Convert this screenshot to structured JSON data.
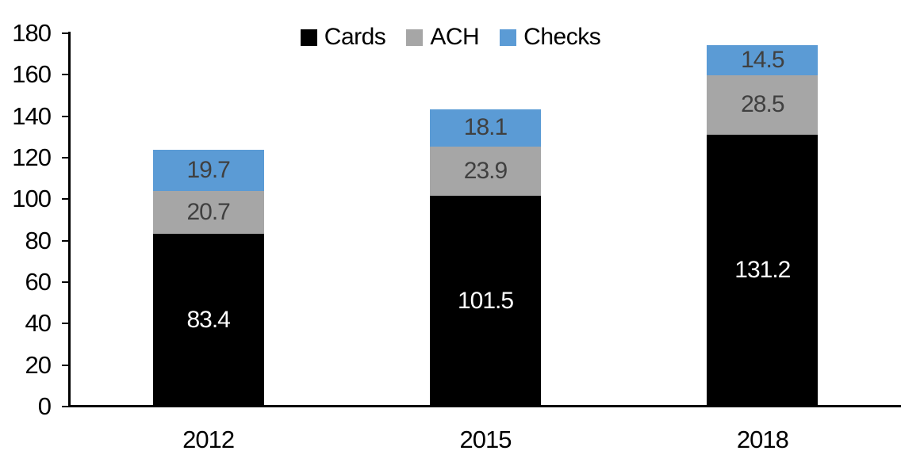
{
  "chart_data": {
    "type": "bar",
    "stacked": true,
    "title": "",
    "xlabel": "",
    "ylabel": "",
    "categories": [
      "2012",
      "2015",
      "2018"
    ],
    "series": [
      {
        "name": "Cards",
        "values": [
          83.4,
          101.5,
          131.2
        ],
        "color": "#000000",
        "label_color": "#ffffff"
      },
      {
        "name": "ACH",
        "values": [
          20.7,
          23.9,
          28.5
        ],
        "color": "#a6a6a6",
        "label_color": "#404040"
      },
      {
        "name": "Checks",
        "values": [
          19.7,
          18.1,
          14.5
        ],
        "color": "#5b9bd5",
        "label_color": "#404040"
      }
    ],
    "totals": [
      123.8,
      143.5,
      174.2
    ],
    "ylim": [
      0,
      180
    ],
    "ytick_step": 20,
    "y_tick_labels": [
      "0",
      "20",
      "40",
      "60",
      "80",
      "100",
      "120",
      "140",
      "160",
      "180"
    ],
    "grid": false,
    "data_labels": true,
    "legend_position": "top-center",
    "colors": {
      "axis": "#000000",
      "background": "#ffffff",
      "cards": "#000000",
      "ach": "#a6a6a6",
      "checks": "#5b9bd5",
      "label_on_dark": "#ffffff",
      "label_on_light": "#404040"
    }
  },
  "legend": {
    "items": [
      {
        "label": "Cards",
        "color": "#000000"
      },
      {
        "label": "ACH",
        "color": "#a6a6a6"
      },
      {
        "label": "Checks",
        "color": "#5b9bd5"
      }
    ]
  }
}
